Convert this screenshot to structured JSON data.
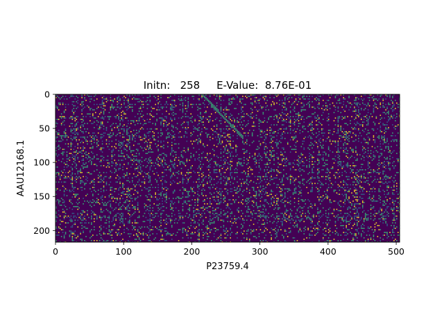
{
  "chart_data": {
    "type": "heatmap",
    "title": "Initn:   258     E-Value:  8.76E-01",
    "xlabel": "P23759.4",
    "ylabel": "AAU12168.1",
    "x_ticks": [
      "0",
      "100",
      "200",
      "300",
      "400",
      "500"
    ],
    "x_tick_values": [
      0,
      100,
      200,
      300,
      400,
      500
    ],
    "y_ticks": [
      "0",
      "50",
      "100",
      "150",
      "200"
    ],
    "y_tick_values": [
      0,
      50,
      100,
      150,
      200
    ],
    "xlim": [
      0,
      505
    ],
    "ylim": [
      217,
      0
    ],
    "colormap": "viridis",
    "colors": {
      "background": "#440154",
      "low": "#31688e",
      "mid": "#35b779",
      "high": "#fde725"
    },
    "grid": false,
    "legend": "none"
  }
}
